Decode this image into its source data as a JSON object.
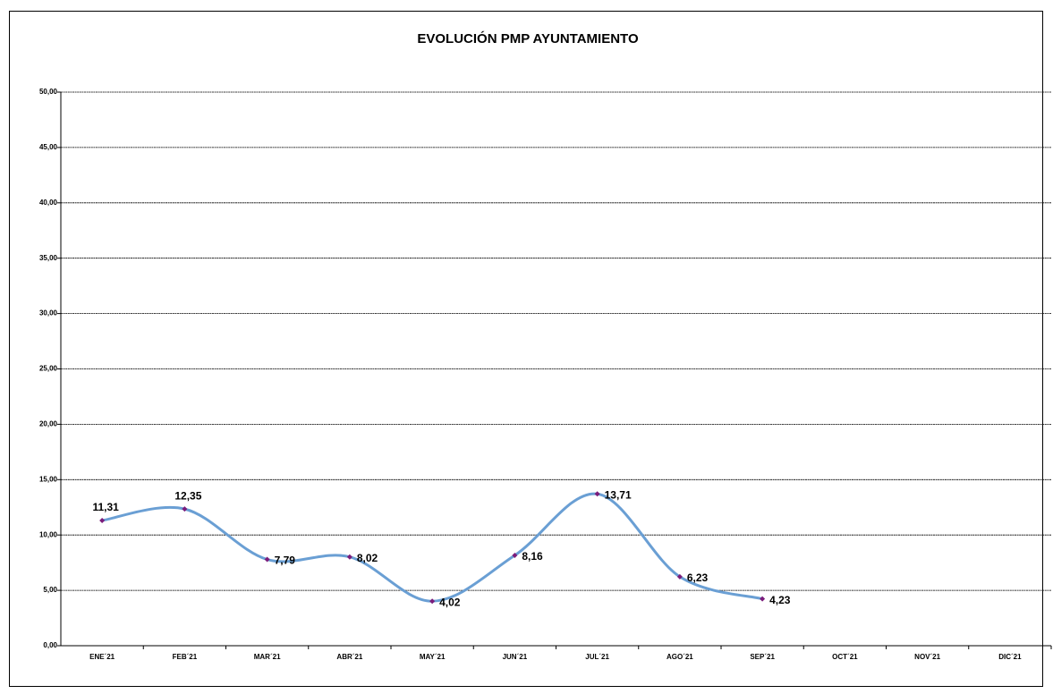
{
  "chart_data": {
    "type": "line",
    "title": "EVOLUCIÓN PMP AYUNTAMIENTO",
    "categories": [
      "ENE´21",
      "FEB´21",
      "MAR´21",
      "ABR´21",
      "MAY´21",
      "JUN´21",
      "JUL´21",
      "AGO´21",
      "SEP´21",
      "OCT´21",
      "NOV´21",
      "DIC´21"
    ],
    "series": [
      {
        "color": "#6a9fd4",
        "marker_color": "#7b1c7b",
        "values": [
          11.31,
          12.35,
          7.79,
          8.02,
          4.02,
          8.16,
          13.71,
          6.23,
          4.23,
          null,
          null,
          null
        ],
        "value_labels": [
          "11,31",
          "12,35",
          "7,79",
          "8,02",
          "4,02",
          "8,16",
          "13,71",
          "6,23",
          "4,23",
          null,
          null,
          null
        ]
      }
    ],
    "ylim": [
      0,
      50
    ],
    "yticks": [
      {
        "value": 0,
        "label": "0,00"
      },
      {
        "value": 5,
        "label": "5,00"
      },
      {
        "value": 10,
        "label": "10,00"
      },
      {
        "value": 15,
        "label": "15,00"
      },
      {
        "value": 20,
        "label": "20,00"
      },
      {
        "value": 25,
        "label": "25,00"
      },
      {
        "value": 30,
        "label": "30,00"
      },
      {
        "value": 35,
        "label": "35,00"
      },
      {
        "value": 40,
        "label": "40,00"
      },
      {
        "value": 45,
        "label": "45,00"
      },
      {
        "value": 50,
        "label": "50,00"
      }
    ],
    "grid": true,
    "smooth": true
  }
}
